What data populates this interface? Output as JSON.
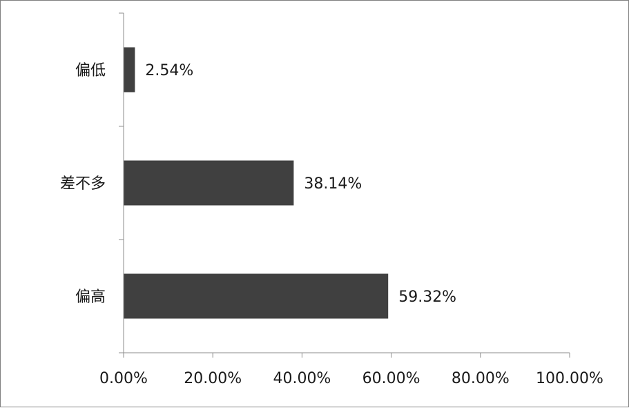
{
  "chart_data": {
    "type": "bar",
    "orientation": "horizontal",
    "categories": [
      "偏低",
      "差不多",
      "偏高"
    ],
    "values": [
      2.54,
      38.14,
      59.32
    ],
    "data_labels": [
      "2.54%",
      "38.14%",
      "59.32%"
    ],
    "x_ticks": [
      "0.00%",
      "20.00%",
      "40.00%",
      "60.00%",
      "80.00%",
      "100.00%"
    ],
    "xlim": [
      0,
      100
    ],
    "title": "",
    "xlabel": "",
    "ylabel": "",
    "grid": false,
    "legend": "none",
    "bar_color": "#404040"
  }
}
